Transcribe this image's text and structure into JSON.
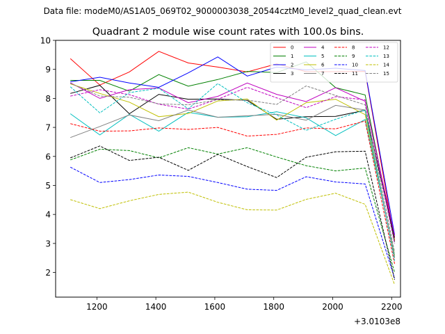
{
  "chart_data": {
    "type": "line",
    "suptitle": "Data file: modeM0/AS1A05_069T02_9000003038_20544cztM0_level2_quad_clean.evt",
    "title": "Quadrant 2 module wise count rates with 100.0s bins.",
    "xlabel": "",
    "ylabel": "",
    "x_offset_label": "+3.0103e8",
    "xlim": [
      1060,
      2230
    ],
    "ylim": [
      1.15,
      10.0
    ],
    "xticks": [
      1200,
      1400,
      1600,
      1800,
      2000,
      2200
    ],
    "yticks": [
      2,
      3,
      4,
      5,
      6,
      7,
      8,
      9,
      10
    ],
    "x": [
      1110,
      1210,
      1310,
      1410,
      1510,
      1610,
      1710,
      1810,
      1910,
      2010,
      2110,
      2210
    ],
    "grid": false,
    "legend_position": "top-right",
    "series": [
      {
        "name": "0",
        "color": "#ff0000",
        "dash": "solid",
        "values": [
          9.37,
          8.46,
          8.91,
          9.62,
          9.22,
          9.08,
          8.91,
          9.19,
          8.92,
          8.92,
          8.93,
          3.1
        ]
      },
      {
        "name": "1",
        "color": "#008000",
        "dash": "solid",
        "values": [
          8.62,
          8.62,
          8.25,
          8.82,
          8.42,
          8.65,
          8.93,
          8.89,
          9.26,
          8.37,
          8.12,
          3.05
        ]
      },
      {
        "name": "2",
        "color": "#0000ff",
        "dash": "solid",
        "values": [
          8.57,
          8.73,
          8.53,
          8.38,
          8.88,
          9.43,
          8.77,
          9.08,
          8.98,
          9.04,
          8.96,
          3.3
        ]
      },
      {
        "name": "3",
        "color": "#000000",
        "dash": "solid",
        "values": [
          8.17,
          8.45,
          7.47,
          8.14,
          7.97,
          7.98,
          7.93,
          7.28,
          7.37,
          7.38,
          7.59,
          3.2
        ]
      },
      {
        "name": "4",
        "color": "#bf00bf",
        "dash": "solid",
        "values": [
          8.54,
          8.0,
          8.3,
          8.36,
          7.85,
          8.07,
          8.53,
          8.14,
          7.89,
          8.37,
          7.9,
          3.25
        ]
      },
      {
        "name": "5",
        "color": "#00bfbf",
        "dash": "solid",
        "values": [
          7.47,
          6.74,
          7.45,
          6.87,
          7.52,
          7.35,
          7.37,
          7.54,
          7.33,
          6.72,
          7.27,
          2.6
        ]
      },
      {
        "name": "6",
        "color": "#bfbf00",
        "dash": "solid",
        "values": [
          8.5,
          8.17,
          7.87,
          7.37,
          7.48,
          7.91,
          7.98,
          7.25,
          7.85,
          7.97,
          7.44,
          2.55
        ]
      },
      {
        "name": "7",
        "color": "#808080",
        "dash": "solid",
        "values": [
          6.65,
          7.03,
          7.43,
          7.23,
          7.6,
          7.35,
          7.4,
          7.45,
          7.25,
          7.76,
          7.6,
          2.5
        ]
      },
      {
        "name": "8",
        "color": "#ff0000",
        "dash": "dashed",
        "values": [
          7.13,
          6.87,
          6.88,
          6.98,
          6.93,
          7.0,
          6.7,
          6.76,
          6.98,
          6.95,
          7.22,
          2.3
        ]
      },
      {
        "name": "9",
        "color": "#008000",
        "dash": "dashed",
        "values": [
          5.88,
          6.25,
          6.2,
          5.95,
          6.3,
          6.08,
          6.3,
          5.98,
          5.68,
          5.5,
          5.6,
          2.0
        ]
      },
      {
        "name": "10",
        "color": "#0000ff",
        "dash": "dashed",
        "values": [
          5.63,
          5.1,
          5.2,
          5.36,
          5.31,
          5.1,
          4.87,
          4.83,
          5.3,
          5.12,
          5.05,
          1.8
        ]
      },
      {
        "name": "11",
        "color": "#000000",
        "dash": "dashed",
        "values": [
          5.95,
          6.36,
          5.86,
          5.97,
          5.52,
          6.07,
          5.65,
          5.27,
          5.97,
          6.16,
          6.18,
          1.75
        ]
      },
      {
        "name": "12",
        "color": "#bf00bf",
        "dash": "dashed",
        "values": [
          8.08,
          8.3,
          8.13,
          7.8,
          7.63,
          7.97,
          8.38,
          8.02,
          7.68,
          8.06,
          7.95,
          3.0
        ]
      },
      {
        "name": "13",
        "color": "#00bfbf",
        "dash": "dashed",
        "values": [
          8.4,
          7.5,
          8.2,
          8.35,
          7.64,
          8.51,
          7.85,
          7.43,
          6.9,
          7.28,
          7.6,
          2.4
        ]
      },
      {
        "name": "14",
        "color": "#bfbf00",
        "dash": "dashed",
        "values": [
          4.51,
          4.2,
          4.47,
          4.69,
          4.77,
          4.42,
          4.16,
          4.15,
          4.52,
          4.73,
          4.35,
          1.58
        ]
      },
      {
        "name": "15",
        "color": "#808080",
        "dash": "dashed",
        "values": [
          8.52,
          8.08,
          8.04,
          7.81,
          7.78,
          7.95,
          7.94,
          7.79,
          8.43,
          8.1,
          7.78,
          2.7
        ]
      }
    ]
  }
}
